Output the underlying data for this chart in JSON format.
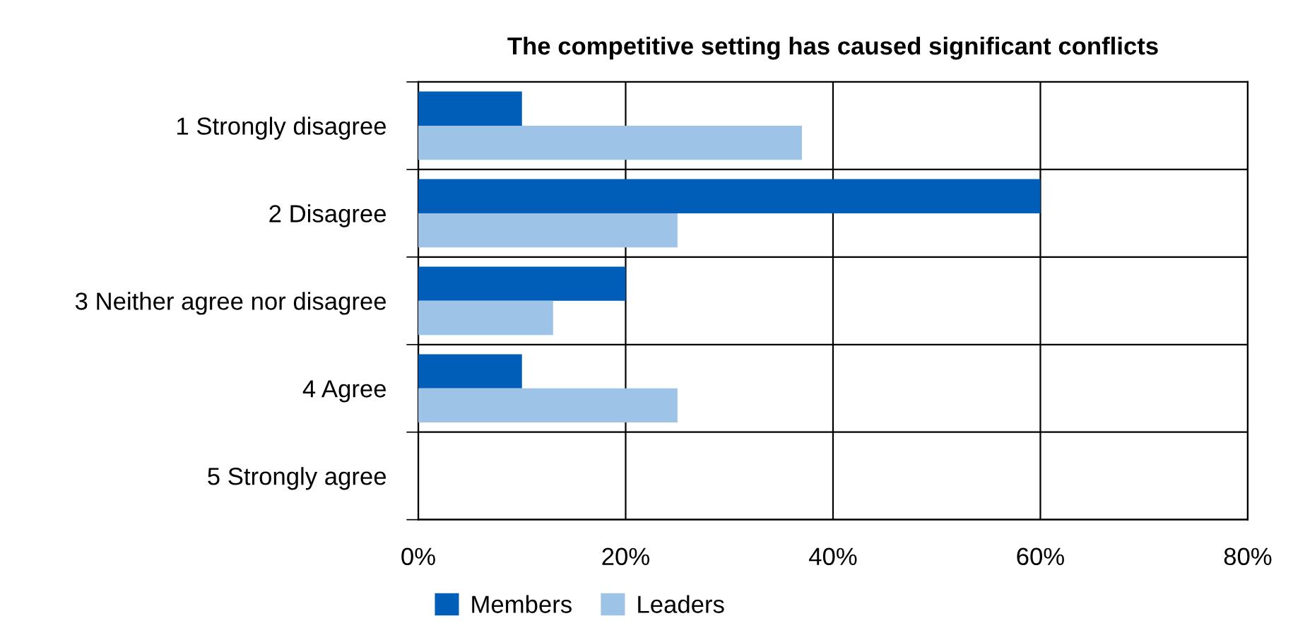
{
  "chart_data": {
    "type": "bar",
    "orientation": "horizontal",
    "title": "The competitive setting has caused significant conflicts",
    "categories": [
      "1 Strongly disagree",
      "2 Disagree",
      "3 Neither agree nor disagree",
      "4 Agree",
      "5 Strongly agree"
    ],
    "series": [
      {
        "name": "Members",
        "color": "#005eb8",
        "values": [
          10,
          60,
          20,
          10,
          0
        ]
      },
      {
        "name": "Leaders",
        "color": "#9dc3e6",
        "values": [
          37,
          25,
          13,
          25,
          0
        ]
      }
    ],
    "xlim": [
      0,
      80
    ],
    "xticks": [
      {
        "value": 0,
        "label": "0%"
      },
      {
        "value": 20,
        "label": "20%"
      },
      {
        "value": 40,
        "label": "40%"
      },
      {
        "value": 60,
        "label": "60%"
      },
      {
        "value": 80,
        "label": "80%"
      }
    ],
    "grid": true,
    "legend": "bottom left"
  }
}
